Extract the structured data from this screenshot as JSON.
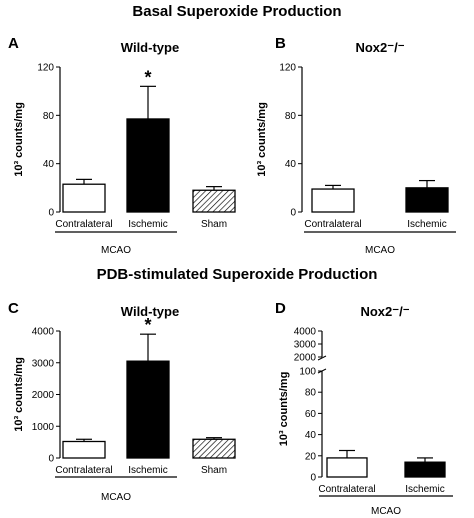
{
  "sections": [
    {
      "title": "Basal Superoxide Production"
    },
    {
      "title": "PDB-stimulated Superoxide Production"
    }
  ],
  "chart_data": [
    {
      "panel": "A",
      "type": "bar",
      "title": "Wild-type",
      "ylabel": "10³ counts/mg",
      "ylim": [
        0,
        120
      ],
      "yticks": [
        "0",
        "40",
        "80",
        "120"
      ],
      "categories": [
        "Contralateral",
        "Ischemic",
        "Sham"
      ],
      "values": [
        23,
        77,
        18
      ],
      "errors": [
        4,
        27,
        3
      ],
      "fills": [
        "white",
        "black",
        "hatched"
      ],
      "significance": [
        "",
        "*",
        ""
      ],
      "group_label": "MCAO"
    },
    {
      "panel": "B",
      "type": "bar",
      "title": "Nox2⁻/⁻",
      "ylabel": "10³ counts/mg",
      "ylim": [
        0,
        120
      ],
      "yticks": [
        "0",
        "40",
        "80",
        "120"
      ],
      "categories": [
        "Contralateral",
        "Ischemic"
      ],
      "values": [
        19,
        20
      ],
      "errors": [
        3,
        6
      ],
      "fills": [
        "white",
        "black"
      ],
      "significance": [
        "",
        ""
      ],
      "group_label": "MCAO"
    },
    {
      "panel": "C",
      "type": "bar",
      "title": "Wild-type",
      "ylabel": "10³ counts/mg",
      "ylim": [
        0,
        4000
      ],
      "yticks": [
        "0",
        "1000",
        "2000",
        "3000",
        "4000"
      ],
      "categories": [
        "Contralateral",
        "Ischemic",
        "Sham"
      ],
      "values": [
        520,
        3050,
        590
      ],
      "errors": [
        70,
        850,
        50
      ],
      "fills": [
        "white",
        "black",
        "hatched"
      ],
      "significance": [
        "",
        "*",
        ""
      ],
      "group_label": "MCAO"
    },
    {
      "panel": "D",
      "type": "bar",
      "title": "Nox2⁻/⁻",
      "ylabel": "10³ counts/mg",
      "ylim": [
        0,
        100
      ],
      "yticks": [
        "0",
        "20",
        "40",
        "60",
        "80",
        "100"
      ],
      "axis_break": true,
      "upper_yticks": [
        "2000",
        "3000",
        "4000"
      ],
      "categories": [
        "Contralateral",
        "Ischemic"
      ],
      "values": [
        18,
        14
      ],
      "errors": [
        7,
        4
      ],
      "fills": [
        "white",
        "black"
      ],
      "significance": [
        "",
        ""
      ],
      "group_label": "MCAO"
    }
  ]
}
